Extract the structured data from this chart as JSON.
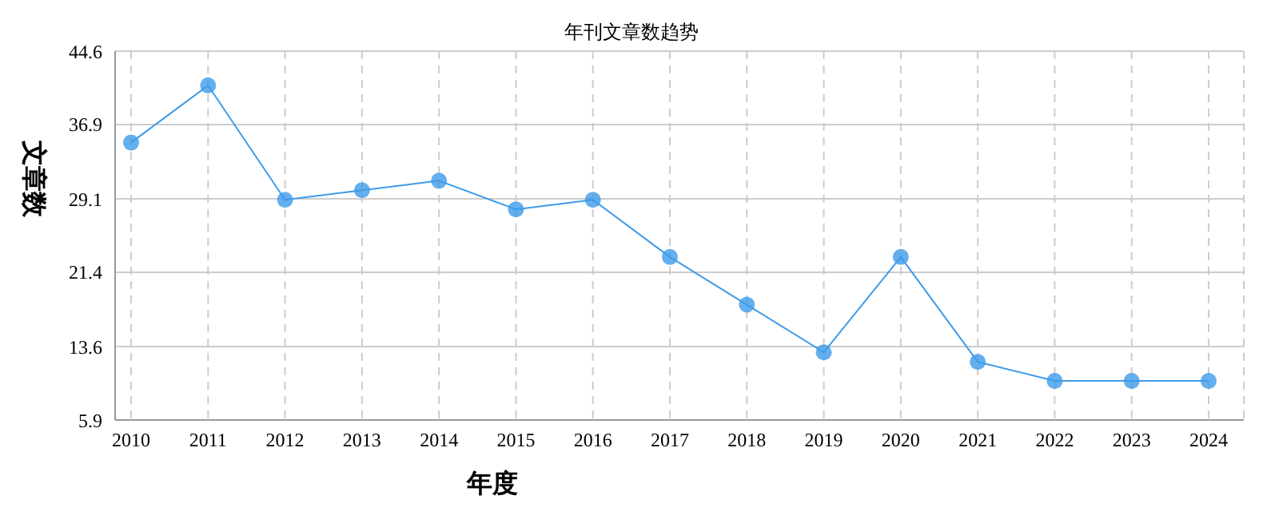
{
  "chart_data": {
    "type": "line",
    "title": "年刊文章数趋势",
    "xlabel": "年度",
    "ylabel": "文章数",
    "categories": [
      "2010",
      "2011",
      "2012",
      "2013",
      "2014",
      "2015",
      "2016",
      "2017",
      "2018",
      "2019",
      "2020",
      "2021",
      "2022",
      "2023",
      "2024"
    ],
    "series": [
      {
        "color": "#3d9be9",
        "values": [
          35,
          41,
          29,
          30,
          31,
          28,
          29,
          23,
          18,
          13,
          23,
          12,
          10,
          10,
          10
        ]
      }
    ],
    "ylim": [
      5.9,
      44.6
    ],
    "yticks": [
      5.9,
      13.6,
      21.4,
      29.1,
      36.9,
      44.6
    ],
    "grid": true,
    "marker": "circle",
    "line_style": "solid",
    "legend": false
  }
}
